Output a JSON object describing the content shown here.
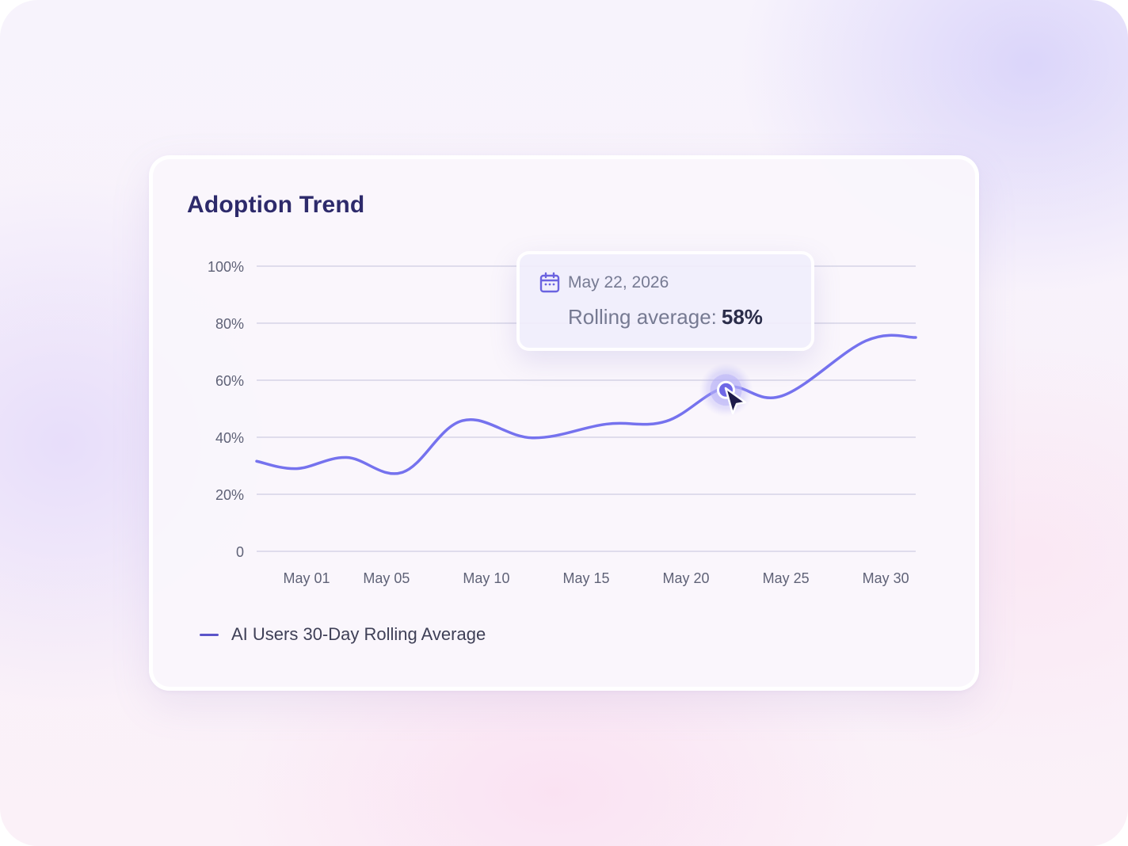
{
  "card": {
    "title": "Adoption Trend"
  },
  "tooltip": {
    "date": "May 22, 2026",
    "label": "Rolling average:",
    "value": "58%",
    "icon": "calendar-icon"
  },
  "legend": {
    "label": "AI Users 30-Day Rolling Average"
  },
  "colors": {
    "line": "#7572ee",
    "legend_swatch": "#5b54c9",
    "title": "#2d2a6b",
    "grid": "#d6d4e6",
    "axis_text": "#5f6277",
    "cursor": "#1e1b4b"
  },
  "chart_data": {
    "type": "line",
    "title": "Adoption Trend",
    "xlabel": "",
    "ylabel": "",
    "ylim": [
      0,
      100
    ],
    "yticks": [
      0,
      20,
      40,
      60,
      80,
      100
    ],
    "ytick_labels": [
      "0",
      "20%",
      "40%",
      "60%",
      "80%",
      "100%"
    ],
    "xlim": [
      -1.5,
      31.5
    ],
    "xticks": [
      1,
      5,
      10,
      15,
      20,
      25,
      30
    ],
    "xtick_labels": [
      "May 01",
      "May 05",
      "May 10",
      "May 15",
      "May 20",
      "May 25",
      "May 30"
    ],
    "grid": true,
    "legend_position": "bottom-left",
    "series": [
      {
        "name": "AI Users 30-Day Rolling Average",
        "x": [
          -1.5,
          0.5,
          3.0,
          5.8,
          8.8,
          12.3,
          16.0,
          19.0,
          22.0,
          24.8,
          29.0,
          31.5
        ],
        "values": [
          31.6,
          29.0,
          32.9,
          27.7,
          45.8,
          39.8,
          44.6,
          45.6,
          57.5,
          54.5,
          73.8,
          75.0
        ]
      }
    ],
    "highlight": {
      "x": 22.0,
      "value": 58,
      "label": "May 22, 2026"
    }
  }
}
